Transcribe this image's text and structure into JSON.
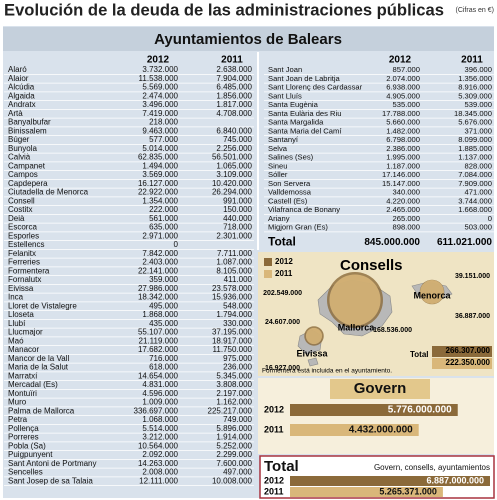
{
  "header": {
    "title": "Evolución de la deuda de las administraciones públicas",
    "note": "(Cifras en €)"
  },
  "ayuntamientos": {
    "title": "Ayuntamientos de Balears",
    "columns": [
      "2012",
      "2011"
    ],
    "left": [
      [
        "Alaró",
        "3.732.000",
        "2.638.000"
      ],
      [
        "Alaior",
        "11.538.000",
        "7.904.000"
      ],
      [
        "Alcúdia",
        "5.569.000",
        "6.485.000"
      ],
      [
        "Algaida",
        "2.474.000",
        "1.856.000"
      ],
      [
        "Andratx",
        "3.496.000",
        "1.817.000"
      ],
      [
        "Artà",
        "7.419.000",
        "4.708.000"
      ],
      [
        "Banyalbufar",
        "218.000"
      ],
      [
        "Binissalem",
        "9.463.000",
        "6.840.000"
      ],
      [
        "Búger",
        "577.000",
        "745.000"
      ],
      [
        "Bunyola",
        "5.014.000",
        "2.256.000"
      ],
      [
        "Calvià",
        "62.835.000",
        "56.501.000"
      ],
      [
        "Campanet",
        "1.494.000",
        "1.065.000"
      ],
      [
        "Campos",
        "3.569.000",
        "3.109.000"
      ],
      [
        "Capdepera",
        "16.127.000",
        "10.420.000"
      ],
      [
        "Ciutadella de Menorca",
        "22.922.000",
        "26.294.000"
      ],
      [
        "Consell",
        "1.354.000",
        "991.000"
      ],
      [
        "Costitx",
        "222.000",
        "150.000"
      ],
      [
        "Deià",
        "561.000",
        "440.000"
      ],
      [
        "Escorca",
        "635.000",
        "718.000"
      ],
      [
        "Esporles",
        "2.971.000",
        "2.301.000"
      ],
      [
        "Estellencs",
        "0"
      ],
      [
        "Felanitx",
        "7.842.000",
        "7.711.000"
      ],
      [
        "Ferreries",
        "2.403.000",
        "1.087.000"
      ],
      [
        "Formentera",
        "22.141.000",
        "8.105.000"
      ],
      [
        "Fornalutx",
        "359.000",
        "411.000"
      ],
      [
        "Eivissa",
        "27.986.000",
        "23.578.000"
      ],
      [
        "Inca",
        "18.342.000",
        "15.936.000"
      ],
      [
        "Lloret de Vistalegre",
        "495.000",
        "548.000"
      ],
      [
        "Lloseta",
        "1.868.000",
        "1.794.000"
      ],
      [
        "Llubí",
        "435.000",
        "330.000"
      ],
      [
        "Llucmajor",
        "55.107.000",
        "37.195.000"
      ],
      [
        "Maó",
        "21.119.000",
        "18.917.000"
      ],
      [
        "Manacor",
        "17.682.000",
        "11.750.000"
      ],
      [
        "Mancor de la Vall",
        "716.000",
        "975.000"
      ],
      [
        "Maria de la Salut",
        "618.000",
        "236.000"
      ],
      [
        "Marratxí",
        "14.654.000",
        "5.345.000"
      ],
      [
        "Mercadal (Es)",
        "4.831.000",
        "3.808.000"
      ],
      [
        "Montuïri",
        "4.596.000",
        "2.197.000"
      ],
      [
        "Muro",
        "1.009.000",
        "1.162.000"
      ],
      [
        "Palma de Mallorca",
        "336.697.000",
        "225.217.000"
      ],
      [
        "Petra",
        "1.068.000",
        "749.000"
      ],
      [
        "Pollença",
        "5.514.000",
        "5.896.000"
      ],
      [
        "Porreres",
        "3.212.000",
        "1.914.000"
      ],
      [
        "Pobla (Sa)",
        "10.564.000",
        "5.252.000"
      ],
      [
        "Puigpunyent",
        "2.092.000",
        "2.299.000"
      ],
      [
        "Sant Antoni de Portmany",
        "14.263.000",
        "7.600.000"
      ],
      [
        "Sencelles",
        "2.008.000",
        "497.000"
      ],
      [
        "Sant Josep de sa Talaia",
        "12.111.000",
        "10.008.000"
      ]
    ],
    "right": [
      [
        "Sant Joan",
        "857.000",
        "396.000"
      ],
      [
        "Sant Joan de Labritja",
        "2.074.000",
        "1.356.000"
      ],
      [
        "Sant Llorenç des Cardassar",
        "6.938.000",
        "8.916.000"
      ],
      [
        "Sant Lluís",
        "4.905.000",
        "5.309.000"
      ],
      [
        "Santa Eugènia",
        "535.000",
        "539.000"
      ],
      [
        "Santa Eulària des Riu",
        "17.788.000",
        "18.345.000"
      ],
      [
        "Santa Margalida",
        "5.660.000",
        "5.676.000"
      ],
      [
        "Santa Maria del Camí",
        "1.482.000",
        "371.000"
      ],
      [
        "Santanyí",
        "6.798.000",
        "8.099.000"
      ],
      [
        "Selva",
        "2.386.000",
        "1.885.000"
      ],
      [
        "Salines (Ses)",
        "1.995.000",
        "1.137.000"
      ],
      [
        "Sineu",
        "1.187.000",
        "828.000"
      ],
      [
        "Sóller",
        "17.146.000",
        "7.084.000"
      ],
      [
        "Son Servera",
        "15.147.000",
        "7.909.000"
      ],
      [
        "Valldemossa",
        "340.000",
        "471.000"
      ],
      [
        "Castell (Es)",
        "4.220.000",
        "3.744.000"
      ],
      [
        "Vilafranca de Bonany",
        "2.465.000",
        "1.668.000"
      ],
      [
        "Ariany",
        "265.000",
        "0"
      ],
      [
        "Migjorn Gran (Es)",
        "898.000",
        "503.000"
      ]
    ],
    "total": [
      "Total",
      "845.000.000",
      "611.021.000"
    ]
  },
  "consells": {
    "title": "Consells",
    "legend": [
      "2012",
      "2011"
    ],
    "islands": [
      {
        "name": "Mallorca",
        "values": [
          202549000,
          168536000
        ],
        "value_labels": [
          "202.549.000",
          "168.536.000"
        ]
      },
      {
        "name": "Menorca",
        "values": [
          39151000,
          36887000
        ],
        "value_labels": [
          "39.151.000",
          "36.887.000"
        ]
      },
      {
        "name": "Eivissa",
        "values": [
          24607000,
          16927000
        ],
        "value_labels": [
          "24.607.000",
          "16.927.000"
        ]
      }
    ],
    "total": [
      "Total",
      "266.307.000",
      "222.350.000"
    ],
    "note": "Formentera está incluida en el ayuntamiento."
  },
  "govern": {
    "title": "Govern",
    "rows": [
      {
        "year": "2012",
        "value": 5776000000,
        "label": "5.776.000.000"
      },
      {
        "year": "2011",
        "value": 4432000000,
        "label": "4.432.000.000"
      }
    ]
  },
  "total": {
    "title": "Total",
    "subtitle": "Govern, consells, ayuntamientos",
    "rows": [
      {
        "year": "2012",
        "value": 6887000000,
        "label": "6.887.000.000"
      },
      {
        "year": "2011",
        "value": 5265371000,
        "label": "5.265.371.000"
      }
    ]
  }
}
